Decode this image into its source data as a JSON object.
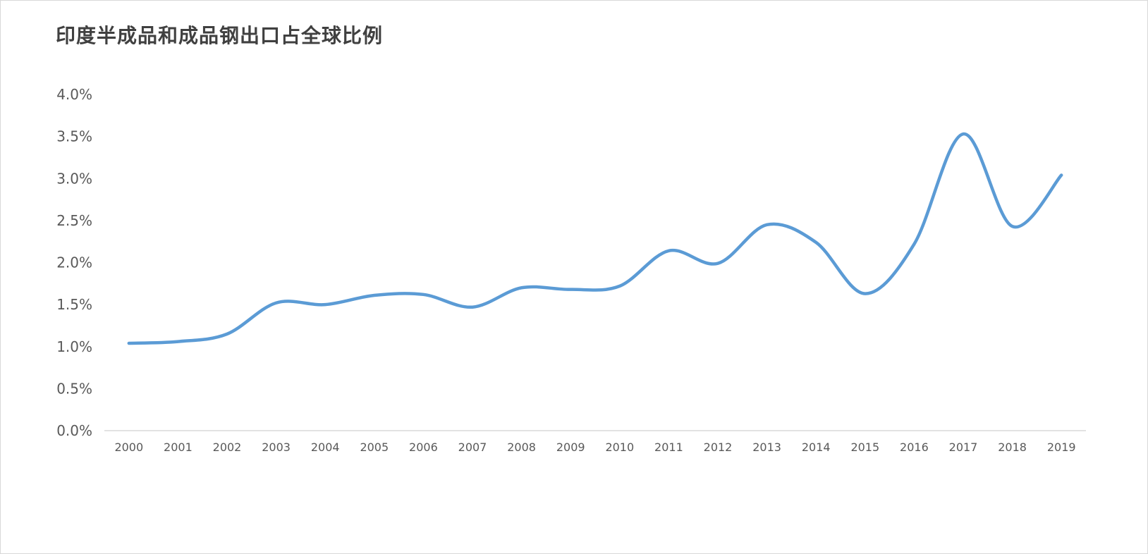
{
  "chart_data": {
    "type": "line",
    "title": "印度半成品和成品钢出口占全球比例",
    "xlabel": "",
    "ylabel": "",
    "x": [
      "2000",
      "2001",
      "2002",
      "2003",
      "2004",
      "2005",
      "2006",
      "2007",
      "2008",
      "2009",
      "2010",
      "2011",
      "2012",
      "2013",
      "2014",
      "2015",
      "2016",
      "2017",
      "2018",
      "2019"
    ],
    "series": [
      {
        "values": [
          1.04,
          1.06,
          1.15,
          1.52,
          1.5,
          1.61,
          1.62,
          1.47,
          1.7,
          1.68,
          1.72,
          2.14,
          1.99,
          2.45,
          2.24,
          1.63,
          2.22,
          3.53,
          2.43,
          3.04
        ],
        "color": "#5b9bd5"
      }
    ],
    "ylim": [
      0,
      4.0
    ],
    "yticks": [
      "0.0%",
      "0.5%",
      "1.0%",
      "1.5%",
      "2.0%",
      "2.5%",
      "3.0%",
      "3.5%",
      "4.0%"
    ],
    "smooth": true,
    "grid": false,
    "legend": "none",
    "axis_color": "#d9d9d9",
    "text_color": "#595959"
  }
}
